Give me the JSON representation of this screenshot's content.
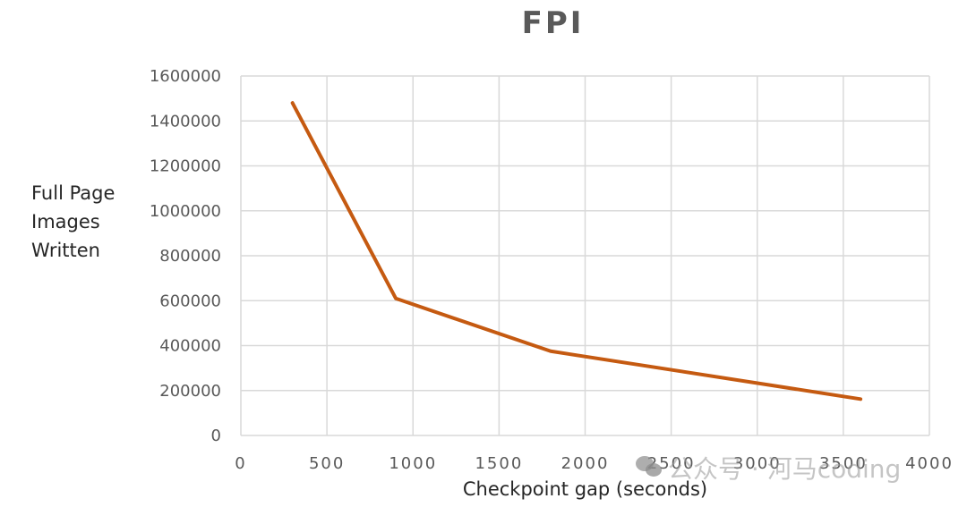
{
  "chart_data": {
    "type": "line",
    "title": "FPI",
    "xlabel": "Checkpoint gap (seconds)",
    "ylabel": "Full Page Images Written",
    "ylabel_lines": [
      "Full Page",
      "Images",
      "Written"
    ],
    "xlim": [
      0,
      4000
    ],
    "ylim": [
      0,
      1600000
    ],
    "x_ticks": [
      "0",
      "500",
      "1000",
      "1500",
      "2000",
      "2500",
      "3000",
      "3500",
      "4000"
    ],
    "y_ticks": [
      "0",
      "200000",
      "400000",
      "600000",
      "800000",
      "1000000",
      "1200000",
      "1400000",
      "1600000"
    ],
    "grid": true,
    "legend": null,
    "series": [
      {
        "name": "FPI",
        "color": "#C55A11",
        "x": [
          300,
          900,
          1800,
          3600
        ],
        "values": [
          1480000,
          610000,
          375000,
          162000
        ]
      }
    ]
  },
  "watermark": {
    "text": "公众号 · 河马coding",
    "icon": "wechat-icon"
  }
}
